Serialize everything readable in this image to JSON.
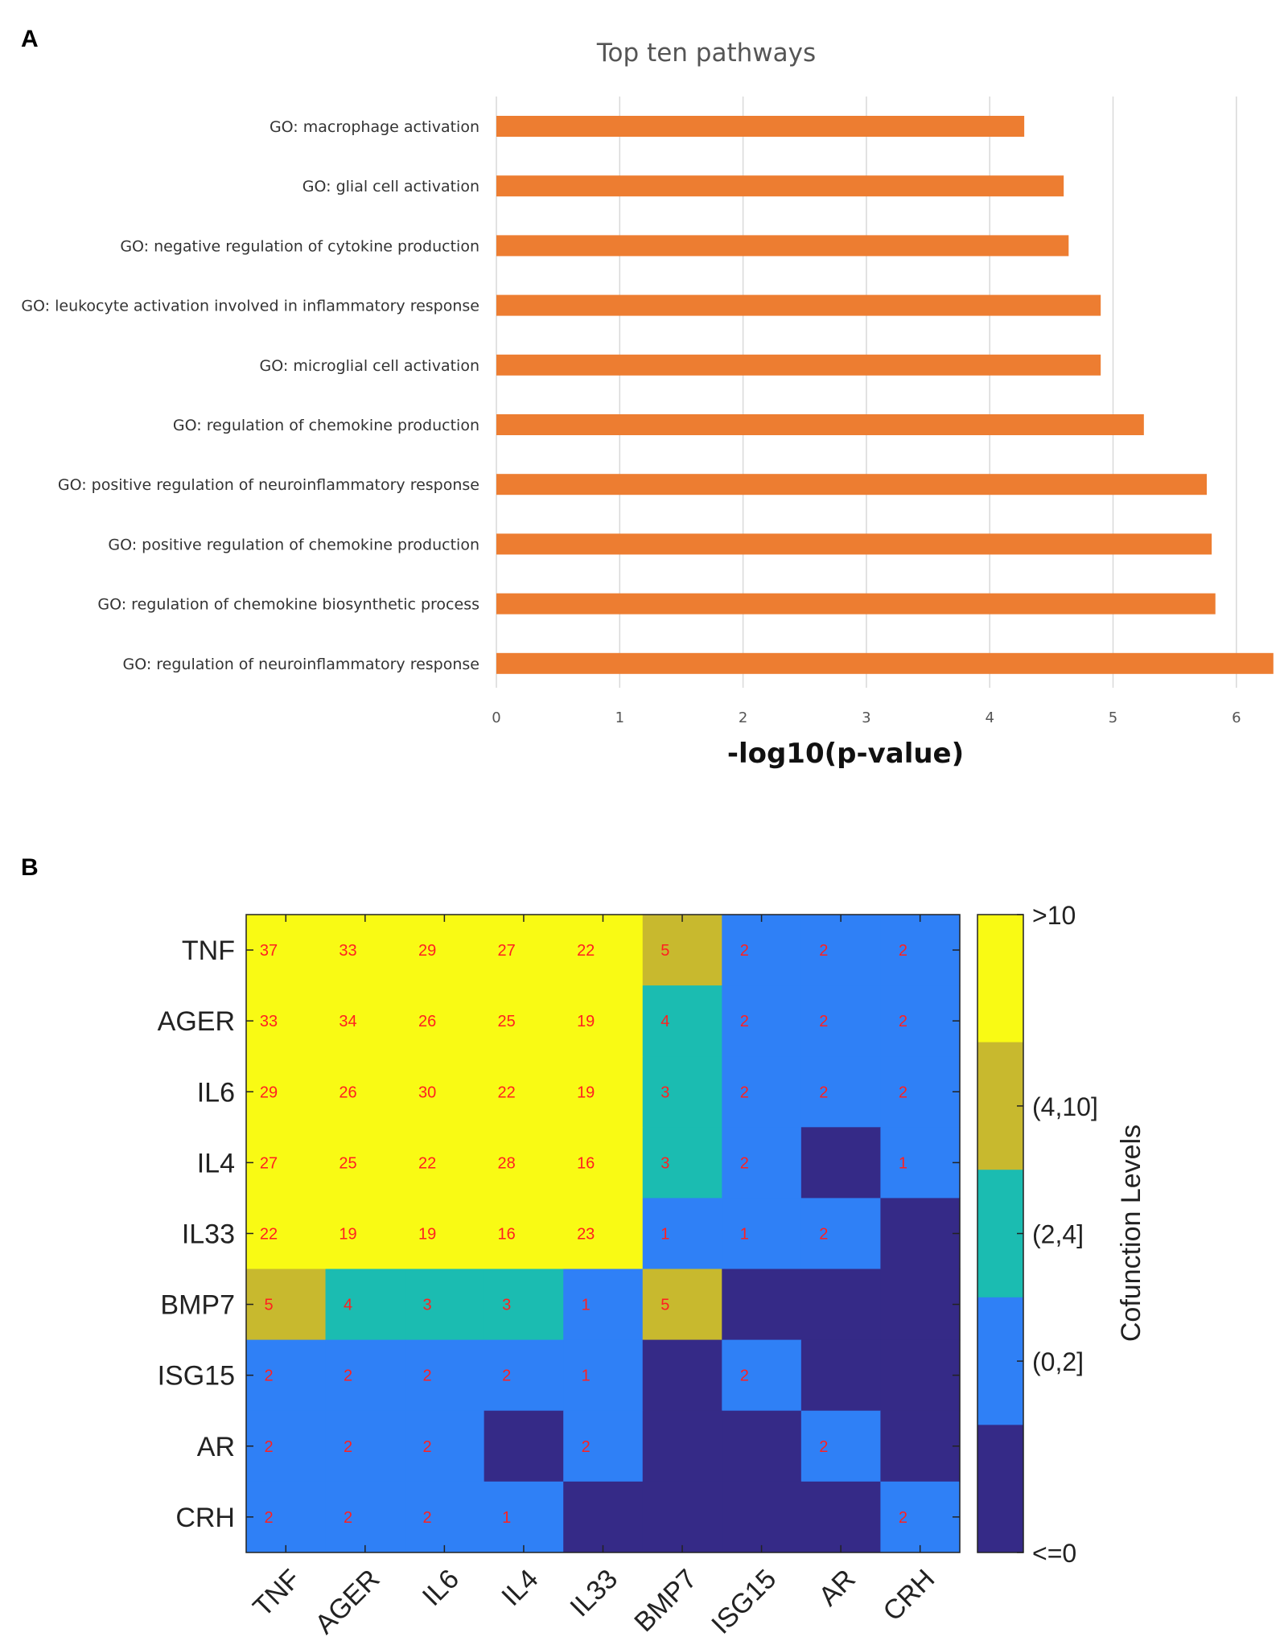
{
  "figure": {
    "panel_a_label": "A",
    "panel_b_label": "B"
  },
  "chart_data": [
    {
      "type": "bar",
      "orientation": "horizontal",
      "title": "Top ten pathways",
      "xlabel": "-log10(p-value)",
      "ylabel": "",
      "xlim": [
        0,
        6.3
      ],
      "xticks": [
        0,
        1,
        2,
        3,
        4,
        5,
        6
      ],
      "grid": true,
      "color": "#ed7d31",
      "categories": [
        "GO: macrophage activation",
        "GO: glial cell activation",
        "GO: negative regulation of cytokine production",
        "GO: leukocyte activation involved in inflammatory response",
        "GO: microglial cell activation",
        "GO: regulation of chemokine production",
        "GO: positive regulation of neuroinflammatory response",
        "GO: positive regulation of chemokine production",
        "GO: regulation of chemokine biosynthetic process",
        "GO: regulation of neuroinflammatory response"
      ],
      "values": [
        4.28,
        4.6,
        4.64,
        4.9,
        4.9,
        5.25,
        5.76,
        5.8,
        5.83,
        6.3
      ]
    },
    {
      "type": "heatmap",
      "rows": [
        "TNF",
        "AGER",
        "IL6",
        "IL4",
        "IL33",
        "BMP7",
        "ISG15",
        "AR",
        "CRH"
      ],
      "columns": [
        "TNF",
        "AGER",
        "IL6",
        "IL4",
        "IL33",
        "BMP7",
        "ISG15",
        "AR",
        "CRH"
      ],
      "values": [
        [
          37,
          33,
          29,
          27,
          22,
          5,
          2,
          2,
          2
        ],
        [
          33,
          34,
          26,
          25,
          19,
          4,
          2,
          2,
          2
        ],
        [
          29,
          26,
          30,
          22,
          19,
          3,
          2,
          2,
          2
        ],
        [
          27,
          25,
          22,
          28,
          16,
          3,
          2,
          0,
          1
        ],
        [
          22,
          19,
          19,
          16,
          23,
          1,
          1,
          2,
          0
        ],
        [
          5,
          4,
          3,
          3,
          1,
          5,
          0,
          0,
          0
        ],
        [
          2,
          2,
          2,
          2,
          1,
          0,
          2,
          0,
          0
        ],
        [
          2,
          2,
          2,
          0,
          2,
          0,
          0,
          2,
          0
        ],
        [
          2,
          2,
          2,
          1,
          0,
          0,
          0,
          0,
          2
        ]
      ],
      "colorbar": {
        "title": "Cofunction Levels",
        "levels": [
          {
            "label": "<=0",
            "color": "#352a87"
          },
          {
            "label": "(0,2]",
            "color": "#2f80f6"
          },
          {
            "label": "(2,4]",
            "color": "#1bbcb1"
          },
          {
            "label": "(4,10]",
            "color": "#c8b92e"
          },
          {
            "label": ">10",
            "color": "#f9fa14"
          }
        ]
      }
    }
  ]
}
